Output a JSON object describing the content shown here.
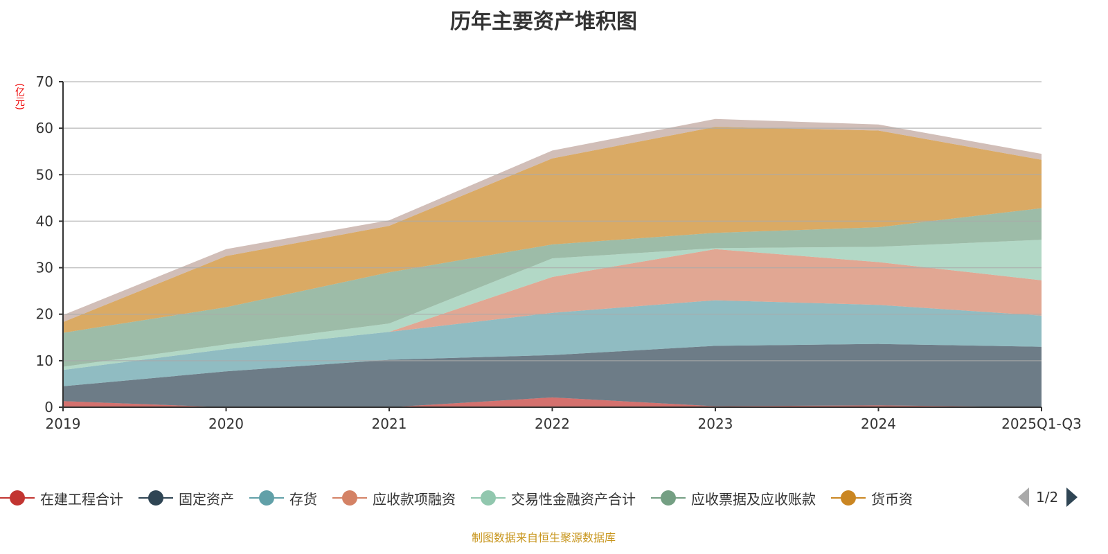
{
  "chart_data": {
    "type": "area",
    "stacked": true,
    "title": "历年主要资产堆积图",
    "ylabel": "(亿元)",
    "xlabel": "",
    "ylim": [
      0,
      70
    ],
    "yticks": [
      0,
      10,
      20,
      30,
      40,
      50,
      60,
      70
    ],
    "grid": true,
    "legend_position": "bottom",
    "categories": [
      "2019",
      "2020",
      "2021",
      "2022",
      "2023",
      "2024",
      "2025Q1-Q3"
    ],
    "series": [
      {
        "name": "在建工程合计",
        "color": "#c23531",
        "values": [
          1.3,
          0,
          0,
          2.1,
          0.2,
          0.4,
          0
        ]
      },
      {
        "name": "固定资产",
        "color": "#2f4554",
        "values": [
          3.2,
          7.7,
          10.2,
          9.1,
          13.0,
          13.2,
          13.0
        ]
      },
      {
        "name": "存货",
        "color": "#61a0a8",
        "values": [
          3.5,
          4.8,
          6.0,
          9.1,
          9.8,
          8.4,
          6.7
        ]
      },
      {
        "name": "应收款项融资",
        "color": "#d48265",
        "values": [
          0,
          0,
          0,
          7.7,
          11.0,
          9.2,
          7.6
        ]
      },
      {
        "name": "交易性金融资产合计",
        "color": "#91c7ae",
        "values": [
          0.7,
          1.0,
          1.8,
          4.0,
          0.2,
          3.3,
          8.7
        ]
      },
      {
        "name": "应收票据及应收账款",
        "color": "#749f83",
        "values": [
          7.3,
          8.0,
          11.0,
          3.0,
          3.3,
          4.2,
          6.8
        ]
      },
      {
        "name": "货币资",
        "color": "#ca8622",
        "values": [
          2.3,
          11.0,
          10.0,
          18.5,
          22.8,
          20.8,
          10.4
        ]
      },
      {
        "name": null,
        "color": "#bda29a",
        "values": [
          1.5,
          1.5,
          1.2,
          1.7,
          1.7,
          1.3,
          1.3
        ]
      }
    ]
  },
  "legend": {
    "page": "1/2"
  },
  "footer": "制图数据来自恒生聚源数据库"
}
